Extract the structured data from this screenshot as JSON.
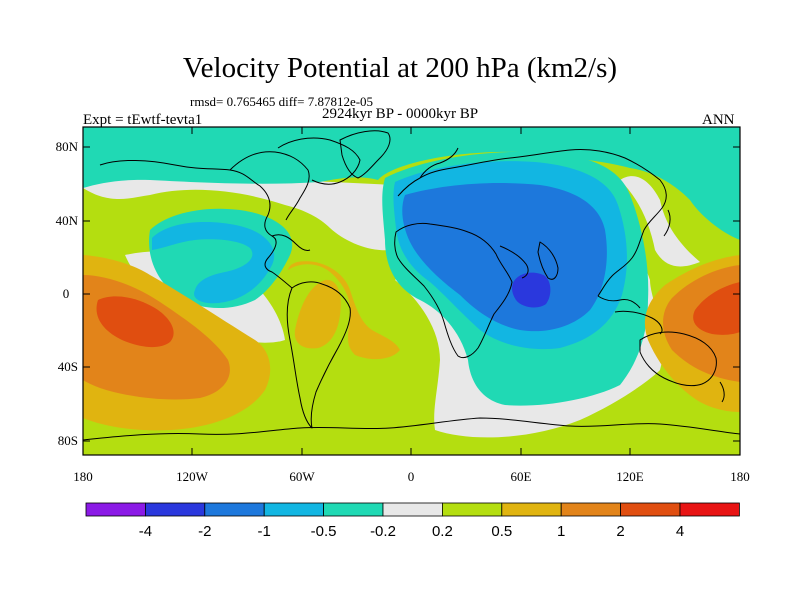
{
  "title": "Velocity Potential at 200 hPa (km2/s)",
  "stats_line": "rmsd= 0.765465 diff= 7.87812e-05",
  "period_line": "2924kyr BP - 0000kyr BP",
  "experiment_line": "Expt = tEwtf-tevta1",
  "season": "ANN",
  "map": {
    "projection": "cylindrical-equidistant",
    "lon_range": [
      -180,
      180
    ],
    "lat_range": [
      -90,
      90
    ],
    "lat_tick_labels": [
      "80N",
      "40N",
      "0",
      "40S",
      "80S"
    ],
    "lon_tick_labels": [
      "180",
      "120W",
      "60W",
      "0",
      "60E",
      "120E",
      "180"
    ]
  },
  "legend": {
    "boundary_labels": [
      "-4",
      "-2",
      "-1",
      "-0.5",
      "-0.2",
      "0.2",
      "0.5",
      "1",
      "2",
      "4"
    ],
    "colors": [
      "#8b1ae6",
      "#2a38dd",
      "#1d78dc",
      "#12b6e2",
      "#20d9b4",
      "#e8e8e8",
      "#b4de10",
      "#e0b410",
      "#e2841a",
      "#e04e10",
      "#e81414"
    ]
  }
}
